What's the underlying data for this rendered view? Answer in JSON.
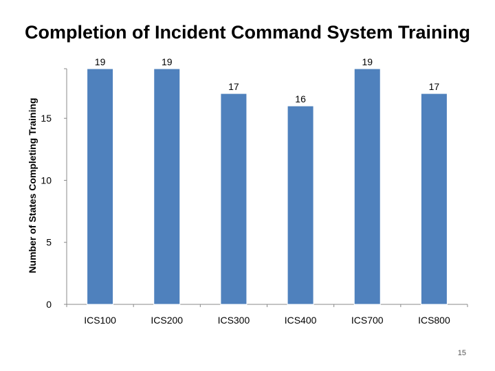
{
  "slide": {
    "title": "Completion of Incident Command System Training",
    "page_number": "15"
  },
  "chart_data": {
    "type": "bar",
    "title": "Completion of Incident Command System Training",
    "xlabel": "",
    "ylabel": "Number of States Completing Training",
    "categories": [
      "ICS100",
      "ICS200",
      "ICS300",
      "ICS400",
      "ICS700",
      "ICS800"
    ],
    "values": [
      19,
      19,
      17,
      16,
      19,
      17
    ],
    "data_labels": [
      "19",
      "19",
      "17",
      "16",
      "19",
      "17"
    ],
    "yticks": [
      0,
      5,
      10,
      15
    ],
    "ylim": [
      0,
      19
    ],
    "grid": false,
    "legend": "none",
    "colors": {
      "bar": "#4F81BD",
      "bar_edge": "#FFFFFF",
      "axis": "#888888",
      "text": "#000000"
    }
  }
}
